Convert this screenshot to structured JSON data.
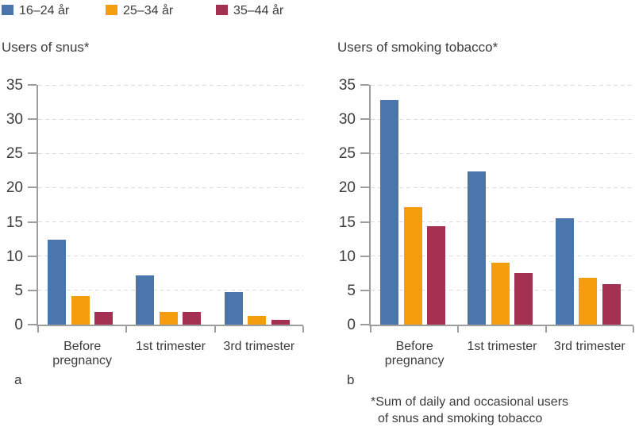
{
  "colors": {
    "blue": "#4A76AC",
    "orange": "#F49D0D",
    "red": "#A43152",
    "axis": "#9E9E9E",
    "grid": "#DBDBDB",
    "text": "#3C3C3C",
    "background": "#FFFFFF"
  },
  "legend": {
    "position": "top-left",
    "items": [
      {
        "label": "16–24 år",
        "color": "#4A76AC"
      },
      {
        "label": "25–34 år",
        "color": "#F49D0D"
      },
      {
        "label": "35–44 år",
        "color": "#A43152"
      }
    ]
  },
  "chart_data": [
    {
      "type": "bar",
      "panel_label": "a",
      "title": "Users of snus*",
      "categories": [
        "Before pregnancy",
        "1st trimester",
        "3rd trimester"
      ],
      "series": [
        {
          "name": "16–24 år",
          "color": "#4A76AC",
          "values": [
            12.4,
            7.2,
            4.7
          ]
        },
        {
          "name": "25–34 år",
          "color": "#F49D0D",
          "values": [
            4.2,
            1.9,
            1.3
          ]
        },
        {
          "name": "35–44 år",
          "color": "#A43152",
          "values": [
            1.9,
            1.8,
            0.7
          ]
        }
      ],
      "ylim": [
        0,
        35
      ],
      "ytick_step": 5,
      "ytick_labels": [
        "0",
        "5",
        "10",
        "15",
        "20",
        "25",
        "30",
        "35"
      ],
      "grid": "dashed-horizontal",
      "xlabel": "",
      "ylabel": ""
    },
    {
      "type": "bar",
      "panel_label": "b",
      "title": "Users of smoking tobacco*",
      "categories": [
        "Before pregnancy",
        "1st trimester",
        "3rd trimester"
      ],
      "series": [
        {
          "name": "16–24 år",
          "color": "#4A76AC",
          "values": [
            32.8,
            22.4,
            15.5
          ]
        },
        {
          "name": "25–34 år",
          "color": "#F49D0D",
          "values": [
            17.2,
            9.0,
            6.8
          ]
        },
        {
          "name": "35–44 år",
          "color": "#A43152",
          "values": [
            14.4,
            7.5,
            5.9
          ]
        }
      ],
      "ylim": [
        0,
        35
      ],
      "ytick_step": 5,
      "ytick_labels": [
        "0",
        "5",
        "10",
        "15",
        "20",
        "25",
        "30",
        "35"
      ],
      "grid": "dashed-horizontal",
      "xlabel": "",
      "ylabel": ""
    }
  ],
  "footnote": {
    "lines": [
      "*Sum of daily and occasional users",
      "of snus and smoking tobacco"
    ]
  }
}
